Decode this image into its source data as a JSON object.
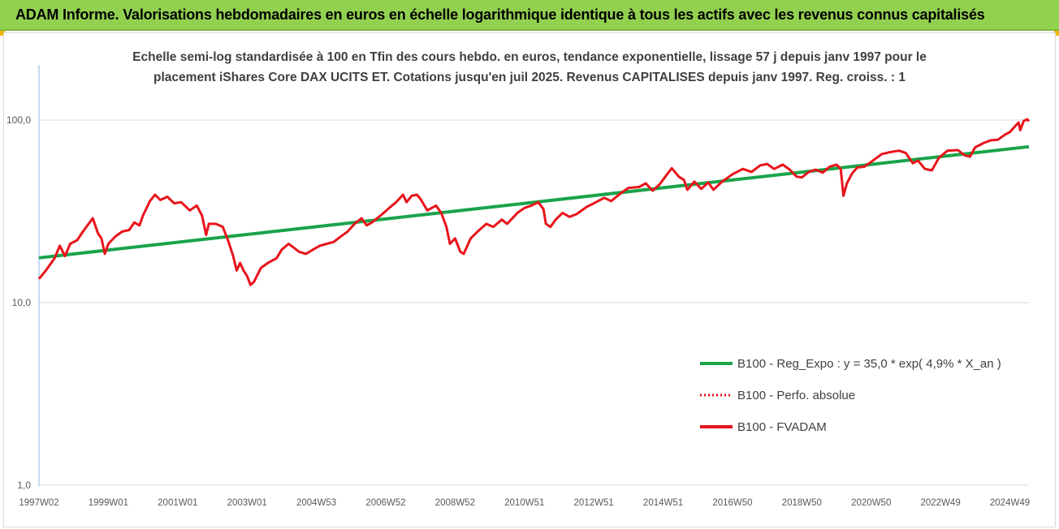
{
  "header": {
    "title": "ADAM Informe. Valorisations hebdomadaires en euros en échelle logarithmique identique à tous les actifs avec les revenus connus capitalisés",
    "banner_color": "#92d050"
  },
  "chart_data": {
    "type": "line",
    "title_line1": "Echelle semi-log standardisée à 100 en Tfin des cours hebdo. en euros, tendance exponentielle, lissage 57 j depuis janv 1997 pour le",
    "title_line2": "placement iShares Core DAX UCITS ET. Cotations jusqu'en juil 2025. Revenus CAPITALISES depuis janv 1997. Reg. croiss. : 1",
    "yscale": "log",
    "ylim": [
      1,
      200
    ],
    "yticks": [
      1,
      10,
      100
    ],
    "ytick_labels": [
      "1,0",
      "10,0",
      "100,0"
    ],
    "xlim": [
      1997.0,
      2025.55
    ],
    "xtick_labels": [
      "1997W02",
      "1999W01",
      "2001W01",
      "2003W01",
      "2004W53",
      "2006W52",
      "2008W52",
      "2010W51",
      "2012W51",
      "2014W51",
      "2016W50",
      "2018W50",
      "2020W50",
      "2022W49",
      "2024W49"
    ],
    "xtick_positions": [
      1997.0,
      1999.0,
      2001.0,
      2003.0,
      2005.0,
      2007.0,
      2009.0,
      2011.0,
      2013.0,
      2015.0,
      2017.0,
      2019.0,
      2021.0,
      2023.0,
      2025.0
    ],
    "grid": "horizontal",
    "legend_position": "bottom-right",
    "series": [
      {
        "name": "B100 - Reg_Expo : y = 35,0 * exp( 4,9% *  X_an )",
        "color": "#1aa34a",
        "style": "solid",
        "points": [
          [
            1997.0,
            17.6
          ],
          [
            2025.55,
            71.5
          ]
        ]
      },
      {
        "name": "B100 - Perfo. absolue",
        "color": "#e8141b",
        "style": "dotted",
        "points": []
      },
      {
        "name": "B100 - FVADAM",
        "color": "#e8141b",
        "style": "solid",
        "points": [
          [
            1997.0,
            13.5
          ],
          [
            1997.2,
            15.0
          ],
          [
            1997.45,
            17.5
          ],
          [
            1997.6,
            20.5
          ],
          [
            1997.75,
            18.0
          ],
          [
            1997.9,
            21.0
          ],
          [
            1998.1,
            22.0
          ],
          [
            1998.3,
            25.0
          ],
          [
            1998.55,
            29.0
          ],
          [
            1998.7,
            24.0
          ],
          [
            1998.8,
            22.5
          ],
          [
            1998.9,
            18.5
          ],
          [
            1999.0,
            21.0
          ],
          [
            1999.2,
            23.0
          ],
          [
            1999.4,
            24.5
          ],
          [
            1999.6,
            25.0
          ],
          [
            1999.75,
            27.5
          ],
          [
            1999.9,
            26.5
          ],
          [
            2000.0,
            30.0
          ],
          [
            2000.2,
            36.0
          ],
          [
            2000.35,
            39.0
          ],
          [
            2000.5,
            36.5
          ],
          [
            2000.7,
            38.0
          ],
          [
            2000.9,
            35.0
          ],
          [
            2001.1,
            35.5
          ],
          [
            2001.35,
            32.0
          ],
          [
            2001.55,
            34.0
          ],
          [
            2001.7,
            30.0
          ],
          [
            2001.82,
            23.5
          ],
          [
            2001.9,
            27.0
          ],
          [
            2002.1,
            27.0
          ],
          [
            2002.3,
            26.0
          ],
          [
            2002.45,
            22.0
          ],
          [
            2002.6,
            18.0
          ],
          [
            2002.7,
            15.0
          ],
          [
            2002.8,
            16.5
          ],
          [
            2002.9,
            15.0
          ],
          [
            2003.0,
            14.0
          ],
          [
            2003.1,
            12.5
          ],
          [
            2003.2,
            13.0
          ],
          [
            2003.4,
            15.5
          ],
          [
            2003.6,
            16.5
          ],
          [
            2003.85,
            17.5
          ],
          [
            2004.0,
            19.5
          ],
          [
            2004.2,
            21.0
          ],
          [
            2004.35,
            20.0
          ],
          [
            2004.5,
            19.0
          ],
          [
            2004.7,
            18.5
          ],
          [
            2004.9,
            19.5
          ],
          [
            2005.1,
            20.5
          ],
          [
            2005.3,
            21.0
          ],
          [
            2005.5,
            21.5
          ],
          [
            2005.7,
            23.0
          ],
          [
            2005.9,
            24.5
          ],
          [
            2006.1,
            27.0
          ],
          [
            2006.3,
            29.0
          ],
          [
            2006.45,
            26.5
          ],
          [
            2006.6,
            27.5
          ],
          [
            2006.9,
            30.5
          ],
          [
            2007.1,
            33.0
          ],
          [
            2007.3,
            35.5
          ],
          [
            2007.5,
            39.0
          ],
          [
            2007.6,
            35.5
          ],
          [
            2007.75,
            38.5
          ],
          [
            2007.9,
            39.0
          ],
          [
            2008.0,
            37.0
          ],
          [
            2008.2,
            32.0
          ],
          [
            2008.45,
            34.0
          ],
          [
            2008.6,
            31.0
          ],
          [
            2008.75,
            26.0
          ],
          [
            2008.85,
            21.0
          ],
          [
            2009.0,
            22.5
          ],
          [
            2009.15,
            19.0
          ],
          [
            2009.25,
            18.5
          ],
          [
            2009.45,
            22.5
          ],
          [
            2009.65,
            24.5
          ],
          [
            2009.9,
            27.0
          ],
          [
            2010.1,
            26.0
          ],
          [
            2010.35,
            28.5
          ],
          [
            2010.5,
            27.0
          ],
          [
            2010.8,
            31.0
          ],
          [
            2011.0,
            33.0
          ],
          [
            2011.2,
            34.0
          ],
          [
            2011.4,
            35.5
          ],
          [
            2011.55,
            32.5
          ],
          [
            2011.62,
            27.0
          ],
          [
            2011.75,
            26.0
          ],
          [
            2011.9,
            28.5
          ],
          [
            2012.1,
            31.0
          ],
          [
            2012.3,
            29.5
          ],
          [
            2012.5,
            30.5
          ],
          [
            2012.8,
            33.5
          ],
          [
            2013.0,
            35.0
          ],
          [
            2013.3,
            37.5
          ],
          [
            2013.5,
            36.0
          ],
          [
            2013.8,
            40.0
          ],
          [
            2014.0,
            42.5
          ],
          [
            2014.3,
            43.0
          ],
          [
            2014.5,
            45.0
          ],
          [
            2014.7,
            41.0
          ],
          [
            2014.9,
            44.5
          ],
          [
            2015.1,
            50.0
          ],
          [
            2015.25,
            54.5
          ],
          [
            2015.45,
            49.0
          ],
          [
            2015.6,
            47.0
          ],
          [
            2015.7,
            41.5
          ],
          [
            2015.9,
            46.0
          ],
          [
            2016.1,
            42.0
          ],
          [
            2016.3,
            45.5
          ],
          [
            2016.45,
            41.5
          ],
          [
            2016.7,
            46.0
          ],
          [
            2017.0,
            50.5
          ],
          [
            2017.3,
            54.0
          ],
          [
            2017.55,
            52.0
          ],
          [
            2017.8,
            56.5
          ],
          [
            2018.0,
            57.5
          ],
          [
            2018.2,
            54.0
          ],
          [
            2018.45,
            57.0
          ],
          [
            2018.65,
            53.5
          ],
          [
            2018.85,
            49.0
          ],
          [
            2019.0,
            48.5
          ],
          [
            2019.2,
            52.0
          ],
          [
            2019.4,
            53.5
          ],
          [
            2019.6,
            51.5
          ],
          [
            2019.8,
            55.5
          ],
          [
            2020.0,
            57.0
          ],
          [
            2020.12,
            54.0
          ],
          [
            2020.2,
            38.5
          ],
          [
            2020.3,
            45.0
          ],
          [
            2020.45,
            51.0
          ],
          [
            2020.6,
            55.0
          ],
          [
            2020.8,
            55.5
          ],
          [
            2021.0,
            59.0
          ],
          [
            2021.3,
            65.0
          ],
          [
            2021.5,
            66.5
          ],
          [
            2021.8,
            68.0
          ],
          [
            2022.0,
            66.0
          ],
          [
            2022.2,
            58.0
          ],
          [
            2022.35,
            60.0
          ],
          [
            2022.55,
            54.0
          ],
          [
            2022.75,
            53.0
          ],
          [
            2022.95,
            62.0
          ],
          [
            2023.2,
            68.0
          ],
          [
            2023.5,
            68.5
          ],
          [
            2023.7,
            64.0
          ],
          [
            2023.85,
            63.0
          ],
          [
            2024.0,
            71.0
          ],
          [
            2024.25,
            75.0
          ],
          [
            2024.45,
            77.5
          ],
          [
            2024.65,
            78.0
          ],
          [
            2024.85,
            83.0
          ],
          [
            2025.0,
            86.0
          ],
          [
            2025.15,
            92.5
          ],
          [
            2025.25,
            97.0
          ],
          [
            2025.3,
            88.0
          ],
          [
            2025.4,
            99.0
          ],
          [
            2025.5,
            101.0
          ],
          [
            2025.55,
            98.5
          ]
        ]
      }
    ]
  }
}
